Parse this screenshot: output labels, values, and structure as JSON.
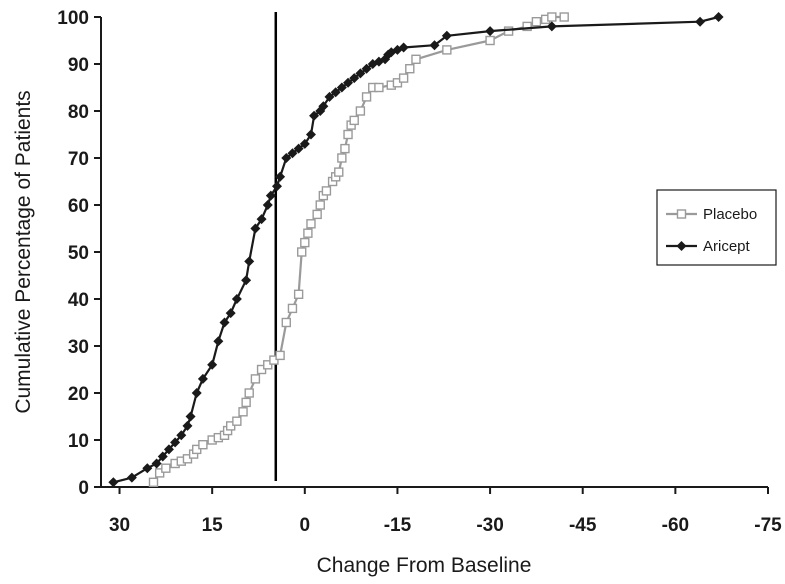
{
  "chart_data": {
    "type": "line",
    "title": "",
    "xlabel": "Change From Baseline",
    "ylabel": "Cumulative Percentage of Patients",
    "xlim": [
      33,
      -75
    ],
    "ylim": [
      0,
      100
    ],
    "x_ticks": [
      30,
      15,
      0,
      -15,
      -30,
      -45,
      -60,
      -75
    ],
    "y_ticks": [
      0,
      10,
      20,
      30,
      40,
      50,
      60,
      70,
      80,
      90,
      100
    ],
    "x_tick_labels": [
      "30",
      "15",
      "0",
      "-15",
      "-30",
      "-45",
      "-60",
      "-75"
    ],
    "y_tick_labels": [
      "0",
      "10",
      "20",
      "30",
      "40",
      "50",
      "60",
      "70",
      "80",
      "90",
      "100"
    ],
    "grid": false,
    "legend_position": "right",
    "reference_line_x": 4.7,
    "series": [
      {
        "name": "Placebo",
        "color": "#9a9a9a",
        "marker": "square-open",
        "x": [
          24.5,
          23.5,
          22.5,
          21,
          20,
          19,
          18,
          17.5,
          16.5,
          15,
          14,
          13,
          12.5,
          12,
          11,
          10,
          9.5,
          9,
          8,
          7,
          6,
          5,
          4,
          3,
          2,
          1,
          0.5,
          0,
          -0.5,
          -1,
          -2,
          -2.5,
          -3,
          -3.5,
          -4.5,
          -5,
          -5.5,
          -6,
          -6.5,
          -7,
          -7.5,
          -8,
          -9,
          -10,
          -11,
          -12,
          -14,
          -15,
          -16,
          -17,
          -18,
          -23,
          -30,
          -33,
          -36,
          -37.5,
          -39,
          -40,
          -42
        ],
        "y": [
          1,
          3,
          4,
          5,
          5.5,
          6,
          7,
          8,
          9,
          10,
          10.5,
          11,
          12,
          13,
          14,
          16,
          18,
          20,
          23,
          25,
          26,
          27,
          28,
          35,
          38,
          41,
          50,
          52,
          54,
          56,
          58,
          60,
          62,
          63,
          65,
          66,
          67,
          70,
          72,
          75,
          77,
          78,
          80,
          83,
          85,
          85,
          85.5,
          86,
          87,
          89,
          91,
          93,
          95,
          97,
          98,
          99,
          99.5,
          100,
          100
        ]
      },
      {
        "name": "Aricept",
        "color": "#1a1a1a",
        "marker": "diamond-filled",
        "x": [
          31,
          28,
          25.5,
          24,
          23,
          22,
          21,
          20,
          19,
          18.5,
          17.5,
          16.5,
          15,
          14,
          13,
          12,
          11,
          9.5,
          9,
          8,
          7,
          6,
          5.5,
          4.5,
          4,
          3,
          2,
          1,
          0,
          -1,
          -1.5,
          -2.5,
          -3,
          -4,
          -5,
          -6,
          -7,
          -8,
          -9,
          -10,
          -11,
          -12,
          -13,
          -13.5,
          -14,
          -15,
          -16,
          -21,
          -23,
          -30,
          -40,
          -64,
          -67
        ],
        "y": [
          1,
          2,
          4,
          5,
          6.5,
          8,
          9.5,
          11,
          13,
          15,
          20,
          23,
          26,
          31,
          35,
          37,
          40,
          44,
          48,
          55,
          57,
          60,
          62,
          64,
          66,
          70,
          71,
          72,
          73,
          75,
          79,
          80,
          81,
          83,
          84,
          85,
          86,
          87,
          88,
          89,
          90,
          90.5,
          91,
          92,
          92.5,
          93,
          93.5,
          94,
          96,
          97,
          98,
          99,
          100
        ]
      }
    ]
  }
}
